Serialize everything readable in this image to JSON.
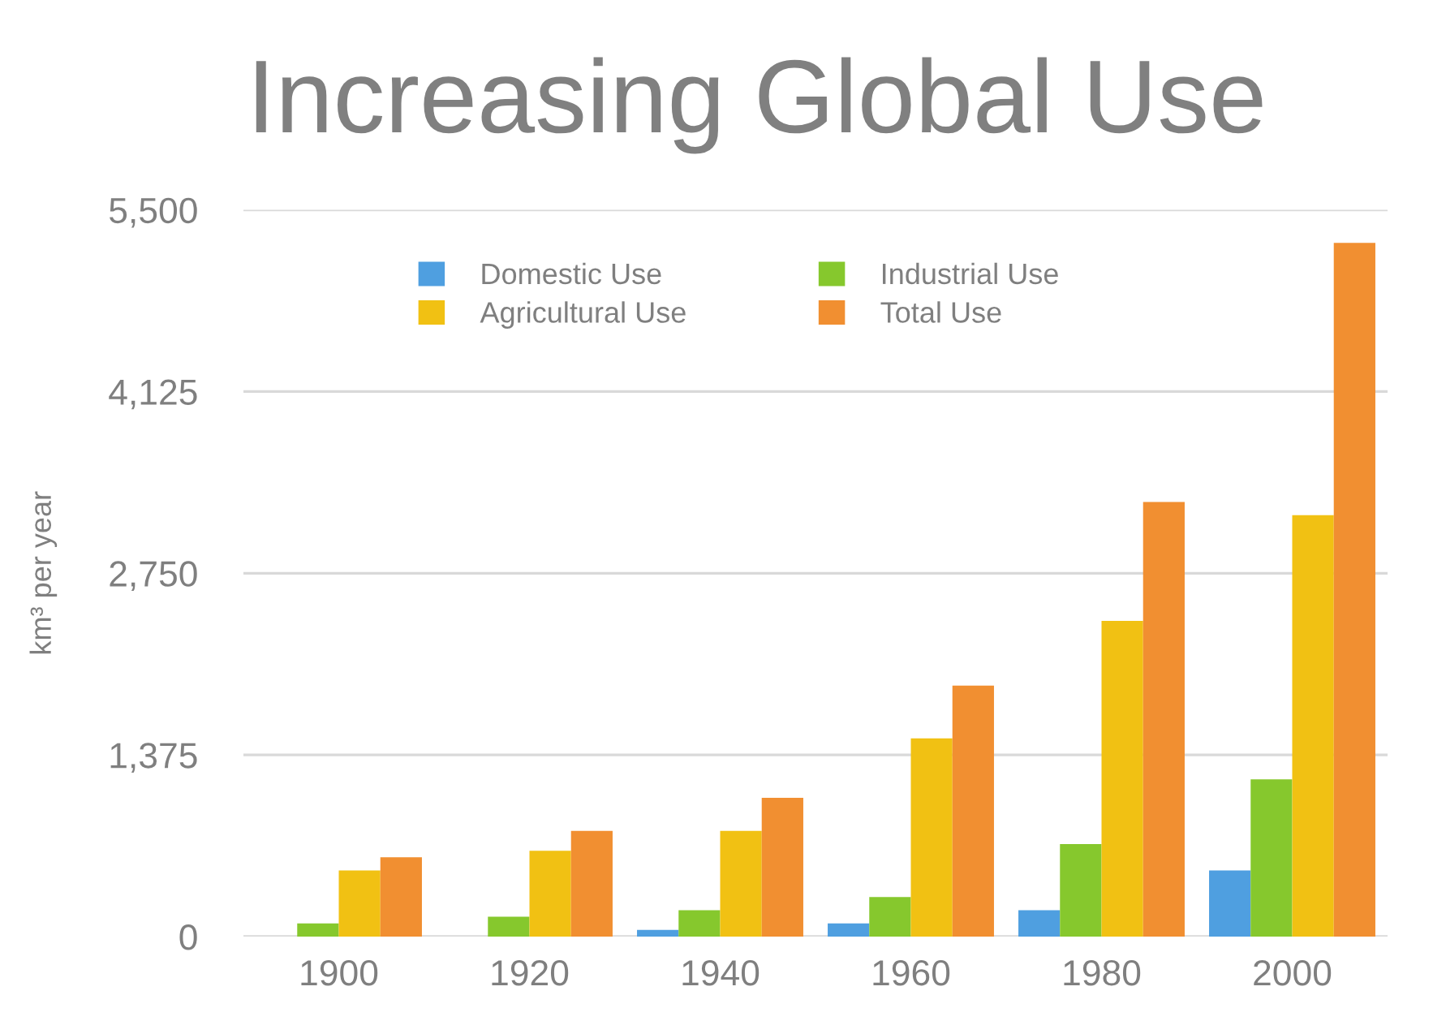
{
  "chart_data": {
    "type": "bar",
    "title": "Increasing Global Use",
    "ylabel": "km³ per year",
    "categories": [
      "1900",
      "1920",
      "1940",
      "1960",
      "1980",
      "2000"
    ],
    "series": [
      {
        "name": "Domestic Use",
        "color": "#4f9fe0",
        "values": [
          null,
          null,
          50,
          100,
          200,
          500
        ]
      },
      {
        "name": "Industrial Use",
        "color": "#86c82d",
        "values": [
          100,
          150,
          200,
          300,
          700,
          1190
        ]
      },
      {
        "name": "Agricultural Use",
        "color": "#f1c113",
        "values": [
          500,
          650,
          800,
          1500,
          2390,
          3190
        ]
      },
      {
        "name": "Total Use",
        "color": "#f18f31",
        "values": [
          600,
          800,
          1050,
          1900,
          3290,
          5250
        ]
      }
    ],
    "ylim": [
      0,
      5500
    ],
    "yticks": [
      0,
      {
        "value": 1375,
        "label": "1,375"
      },
      {
        "value": 2750,
        "label": "2,750"
      },
      {
        "value": 4125,
        "label": "4,125"
      },
      {
        "value": 5500,
        "label": "5,500"
      }
    ],
    "grid": "y",
    "legend": "top"
  }
}
